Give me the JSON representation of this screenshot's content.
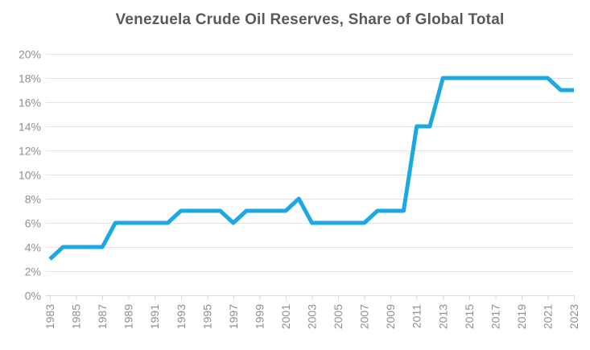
{
  "header": {
    "title": "Venezuela Crude Oil Reserves, Share of Global Total"
  },
  "chart_data": {
    "type": "line",
    "title": "Venezuela Crude Oil Reserves, Share of Global Total",
    "xlabel": "",
    "ylabel": "",
    "x": [
      1983,
      1984,
      1985,
      1986,
      1987,
      1988,
      1989,
      1990,
      1991,
      1992,
      1993,
      1994,
      1995,
      1996,
      1997,
      1998,
      1999,
      2000,
      2001,
      2002,
      2003,
      2004,
      2005,
      2006,
      2007,
      2008,
      2009,
      2010,
      2011,
      2012,
      2013,
      2014,
      2015,
      2016,
      2017,
      2018,
      2019,
      2020,
      2021,
      2022,
      2023
    ],
    "values": [
      3,
      4,
      4,
      4,
      4,
      6,
      6,
      6,
      6,
      6,
      7,
      7,
      7,
      7,
      6,
      7,
      7,
      7,
      7,
      8,
      6,
      6,
      6,
      6,
      6,
      7,
      7,
      7,
      14,
      14,
      18,
      18,
      18,
      18,
      18,
      18,
      18,
      18,
      18,
      17,
      17
    ],
    "units": "percent",
    "ylim": [
      0,
      20
    ],
    "y_ticks": [
      0,
      2,
      4,
      6,
      8,
      10,
      12,
      14,
      16,
      18,
      20
    ],
    "y_tick_labels": [
      "0%",
      "2%",
      "4%",
      "6%",
      "8%",
      "10%",
      "12%",
      "14%",
      "16%",
      "18%",
      "20%"
    ],
    "x_tick_labels": [
      "1983",
      "1985",
      "1987",
      "1989",
      "1991",
      "1993",
      "1995",
      "1997",
      "1999",
      "2001",
      "2003",
      "2005",
      "2007",
      "2009",
      "2011",
      "2013",
      "2015",
      "2017",
      "2019",
      "2021",
      "2023"
    ],
    "grid": "horizontal",
    "legend": "none",
    "colors": {
      "line": "#1CA8E3",
      "grid": "#E3E3E3",
      "axis": "#D9D9D9",
      "tick_label": "#8F8F8F",
      "title": "#58595B",
      "background": "#FFFFFF"
    }
  }
}
